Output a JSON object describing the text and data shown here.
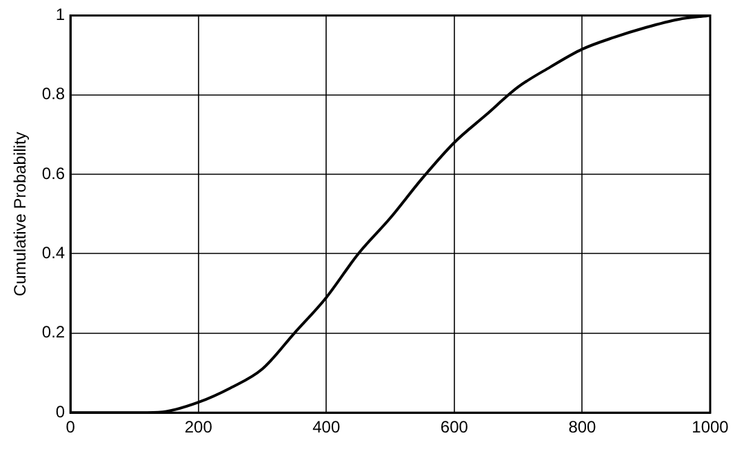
{
  "chart_data": {
    "type": "line",
    "ylabel": "Cumulative Probability",
    "x": [
      0,
      50,
      100,
      120,
      150,
      200,
      250,
      300,
      350,
      400,
      450,
      500,
      550,
      600,
      650,
      700,
      750,
      800,
      850,
      900,
      950,
      1000
    ],
    "series": [
      {
        "color": "#000000",
        "values": [
          0,
          0,
          0,
          0,
          0.003,
          0.026,
          0.062,
          0.11,
          0.2,
          0.29,
          0.4,
          0.49,
          0.59,
          0.68,
          0.75,
          0.82,
          0.87,
          0.915,
          0.945,
          0.97,
          0.99,
          1
        ]
      }
    ],
    "xlim": [
      0,
      1000
    ],
    "xticks": [
      0,
      200,
      400,
      600,
      800,
      1000
    ],
    "ylim": [
      0,
      1
    ],
    "yticks": [
      0,
      0.2,
      0.4,
      0.6,
      0.8,
      1
    ],
    "grid": true,
    "legend": false,
    "marker": "none",
    "line_style": "solid"
  }
}
